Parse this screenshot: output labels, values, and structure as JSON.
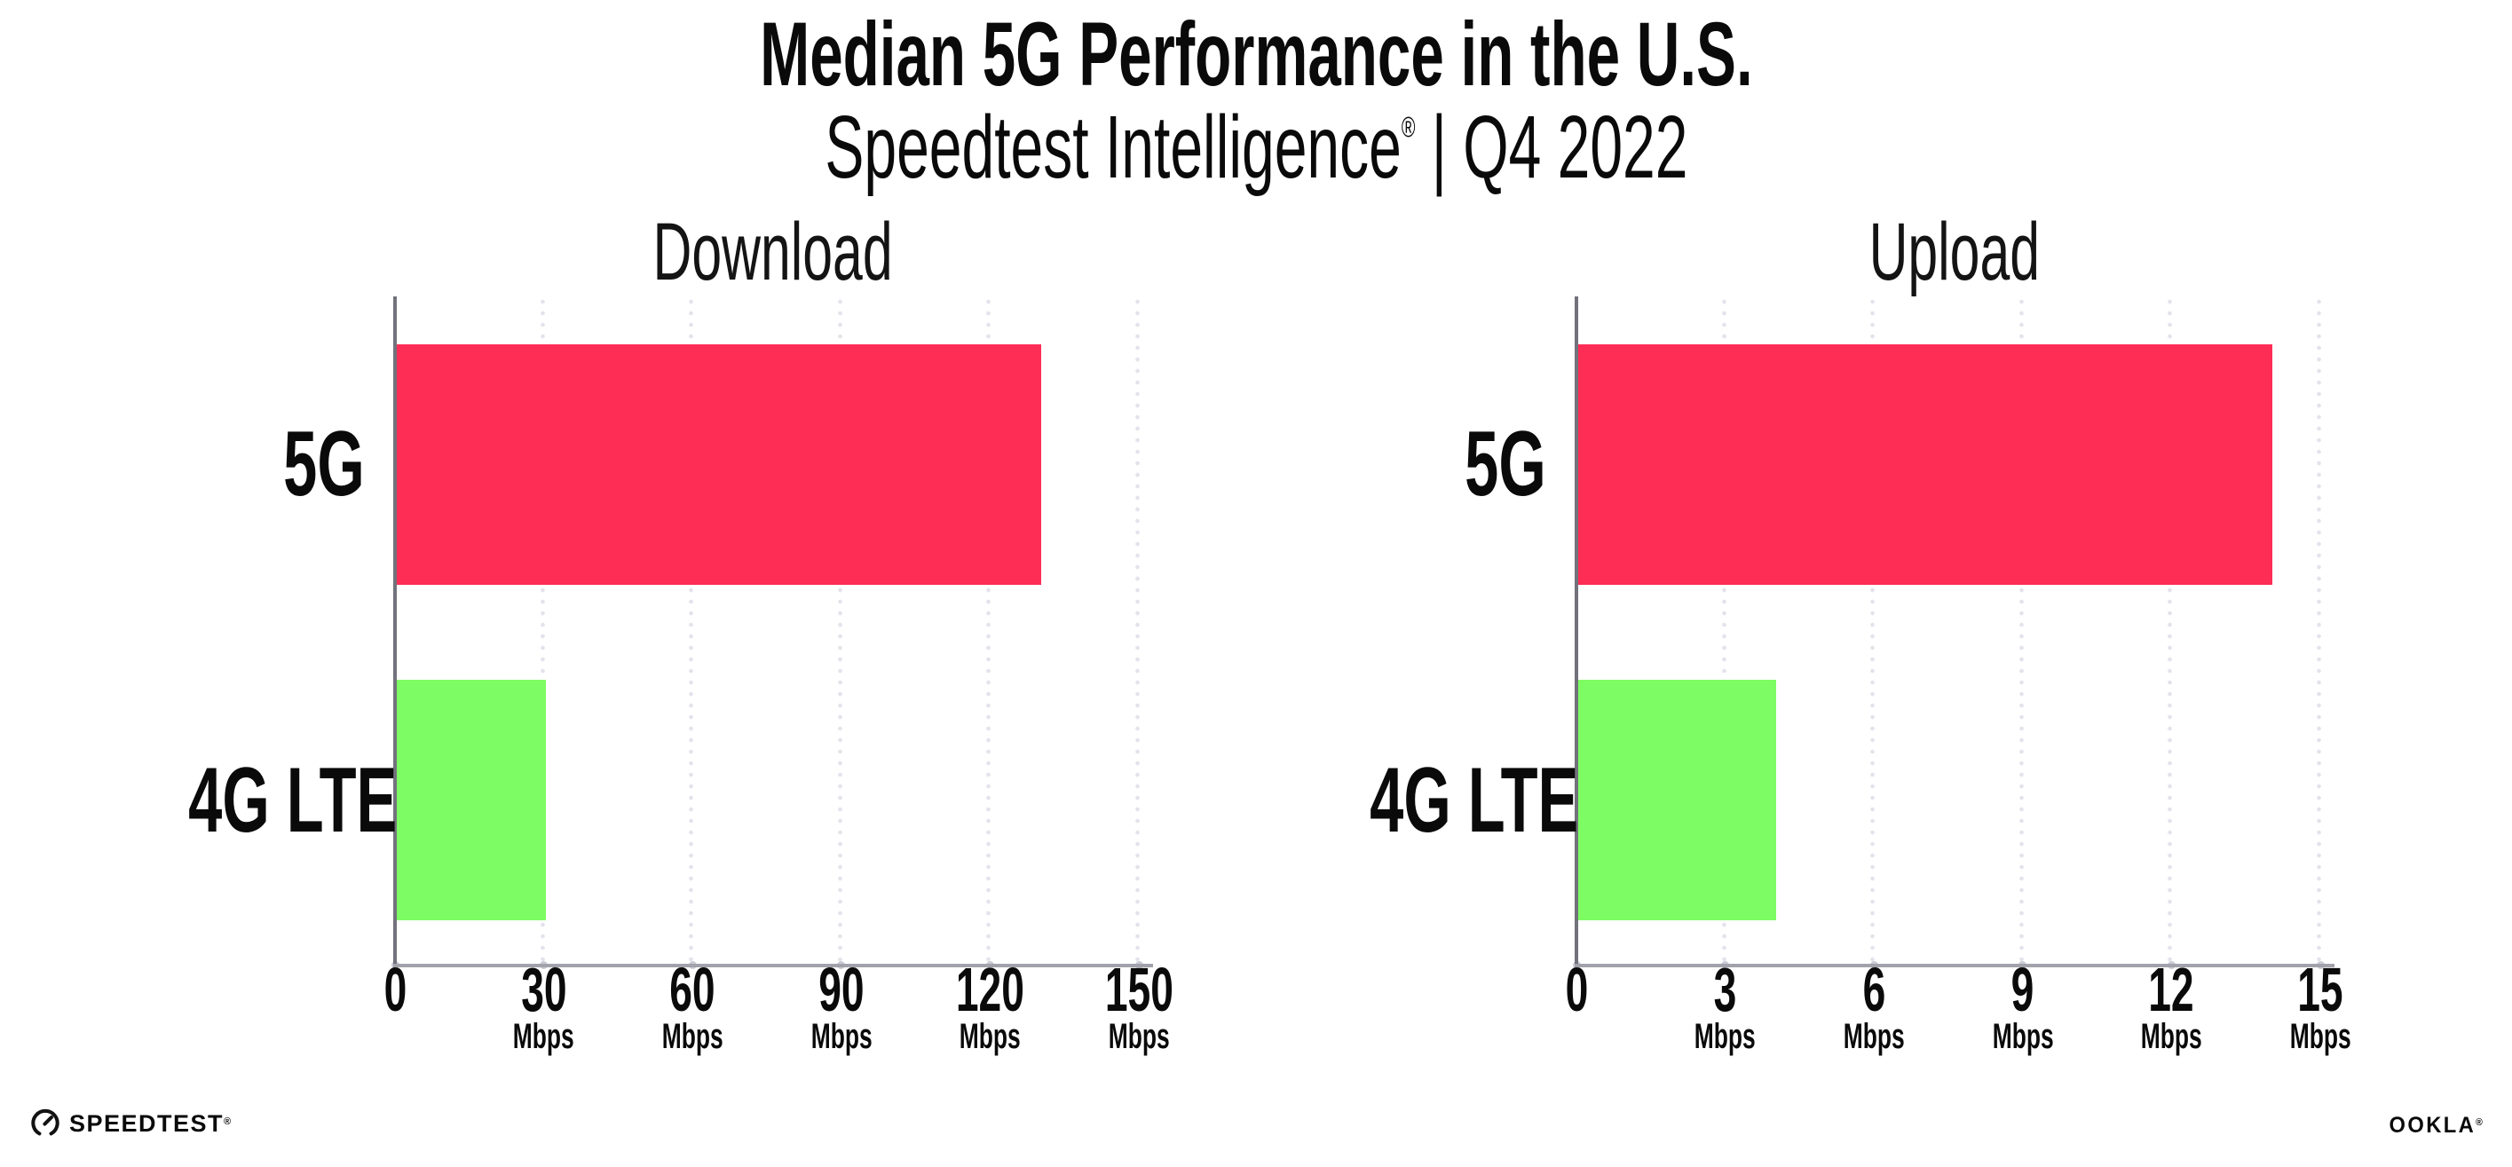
{
  "header": {
    "title": "Median 5G Performance in the U.S.",
    "subtitle_brand": "Speedtest Intelligence",
    "subtitle_reg": "®",
    "subtitle_rest": " | Q4 2022"
  },
  "chart_data": {
    "type": "bar",
    "orientation": "horizontal",
    "title": "Median 5G Performance in the U.S.",
    "subtitle": "Speedtest Intelligence® | Q4 2022",
    "categories": [
      "5G",
      "4G LTE"
    ],
    "series_colors": {
      "5G": "#fe2d56",
      "4G LTE": "#7dfc64"
    },
    "grid": "dotted-vertical",
    "legend": "none",
    "charts": [
      {
        "title": "Download",
        "unit": "Mbps",
        "xlim": [
          0,
          150
        ],
        "xticks": [
          0,
          30,
          60,
          90,
          120,
          150
        ],
        "values": [
          130,
          30
        ]
      },
      {
        "title": "Upload",
        "unit": "Mbps",
        "xlim": [
          0,
          15
        ],
        "xticks": [
          0,
          3,
          6,
          9,
          12,
          15
        ],
        "values": [
          14,
          4
        ]
      }
    ]
  },
  "footer": {
    "speedtest_label": "SPEEDTEST",
    "speedtest_reg": "®",
    "ookla_label": "OOKLA",
    "ookla_reg": "®"
  }
}
